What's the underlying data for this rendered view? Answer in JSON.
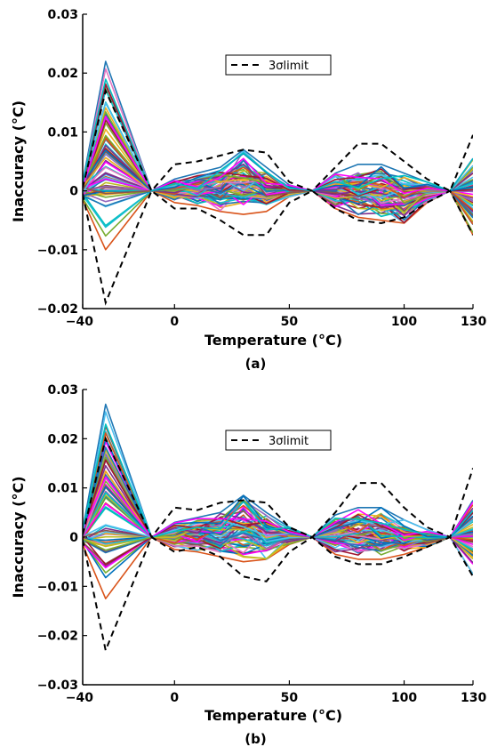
{
  "chart_data": [
    {
      "type": "line",
      "caption": "(a)",
      "xlabel": "Temperature (°C)",
      "ylabel": "Inaccuracy (°C)",
      "x": [
        -40,
        -30,
        -10,
        0,
        10,
        20,
        30,
        40,
        50,
        60,
        70,
        80,
        90,
        100,
        110,
        120,
        130
      ],
      "xlim": [
        -40,
        130
      ],
      "ylim": [
        -0.02,
        0.03
      ],
      "xticks": [
        "−40",
        "0",
        "50",
        "100",
        "130"
      ],
      "xtick_values": [
        -40,
        0,
        50,
        100,
        130
      ],
      "yticks": [
        "−0.02",
        "−0.01",
        "0",
        "0.01",
        "0.02",
        "0.03"
      ],
      "ytick_values": [
        -0.02,
        -0.01,
        0,
        0.01,
        0.02,
        0.03
      ],
      "legend": {
        "label": "3σlimit",
        "position": "top-center"
      },
      "limit_upper": [
        0.0005,
        0.017,
        0.0,
        0.0045,
        0.005,
        0.006,
        0.007,
        0.0065,
        0.0015,
        0.0,
        0.004,
        0.008,
        0.008,
        0.005,
        0.002,
        0.0,
        0.0095
      ],
      "limit_lower": [
        -0.0005,
        -0.019,
        0.0,
        -0.003,
        -0.003,
        -0.005,
        -0.0075,
        -0.0075,
        -0.002,
        0.0,
        -0.003,
        -0.005,
        -0.0055,
        -0.0045,
        -0.002,
        0.0,
        -0.0075
      ],
      "envelope_upper": [
        0.0015,
        0.022,
        0.0,
        0.002,
        0.003,
        0.004,
        0.007,
        0.004,
        0.001,
        0.0,
        0.003,
        0.0045,
        0.0045,
        0.003,
        0.0015,
        0.0,
        0.0055
      ],
      "envelope_lower": [
        -0.0015,
        -0.01,
        0.0,
        -0.002,
        -0.0025,
        -0.0035,
        -0.004,
        -0.0035,
        -0.001,
        0.0,
        -0.003,
        -0.0045,
        -0.005,
        -0.0055,
        -0.002,
        0.0,
        -0.0075
      ]
    },
    {
      "type": "line",
      "caption": "(b)",
      "xlabel": "Temperature (°C)",
      "ylabel": "Inaccuracy (°C)",
      "x": [
        -40,
        -30,
        -10,
        0,
        10,
        20,
        30,
        40,
        50,
        60,
        70,
        80,
        90,
        100,
        110,
        120,
        130
      ],
      "xlim": [
        -40,
        130
      ],
      "ylim": [
        -0.03,
        0.03
      ],
      "xticks": [
        "−40",
        "0",
        "50",
        "100",
        "130"
      ],
      "xtick_values": [
        -40,
        0,
        50,
        100,
        130
      ],
      "yticks": [
        "−0.03",
        "−0.02",
        "−0.01",
        "0",
        "0.01",
        "0.02",
        "0.03"
      ],
      "ytick_values": [
        -0.03,
        -0.02,
        -0.01,
        0,
        0.01,
        0.02,
        0.03
      ],
      "legend": {
        "label": "3σlimit",
        "position": "top-center"
      },
      "limit_upper": [
        0.0005,
        0.02,
        0.0,
        0.006,
        0.0055,
        0.007,
        0.0075,
        0.007,
        0.002,
        0.0,
        0.005,
        0.011,
        0.011,
        0.006,
        0.002,
        0.0,
        0.014
      ],
      "limit_lower": [
        -0.0005,
        -0.023,
        0.0,
        -0.003,
        -0.002,
        -0.004,
        -0.008,
        -0.009,
        -0.003,
        0.0,
        -0.004,
        -0.0055,
        -0.0055,
        -0.004,
        -0.002,
        0.0,
        -0.008
      ],
      "envelope_upper": [
        0.0015,
        0.027,
        0.0,
        0.003,
        0.004,
        0.005,
        0.0085,
        0.005,
        0.002,
        0.0,
        0.0045,
        0.006,
        0.006,
        0.0035,
        0.0015,
        0.0,
        0.0075
      ],
      "envelope_lower": [
        -0.0015,
        -0.0125,
        0.0,
        -0.0025,
        -0.003,
        -0.004,
        -0.005,
        -0.0045,
        -0.0015,
        0.0,
        -0.0035,
        -0.0045,
        -0.0045,
        -0.0035,
        -0.002,
        0.0,
        -0.0075
      ]
    }
  ]
}
